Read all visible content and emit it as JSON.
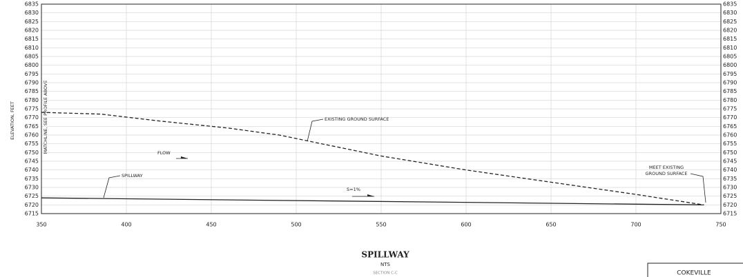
{
  "chart_data": {
    "type": "line",
    "title": "SPILLWAY",
    "subtitle": "NTS",
    "section": "SECTION C-C",
    "ylabel": "ELEVATION, FEET",
    "matchline": "MATCHLINE, SEE PROFILE ABOVE",
    "annotations": [
      "EXISTING GROUND SURFACE",
      "FLOW",
      "SPILLWAY",
      "S=1%",
      "MEET EXISTING",
      "GROUND SURFACE"
    ],
    "title_block": "COKEVILLE",
    "series": [
      {
        "name": "EXISTING GROUND SURFACE",
        "color": "#222222",
        "style": "dashed",
        "x": [
          350,
          385,
          420,
          460,
          490,
          510,
          550,
          600,
          650,
          700,
          740
        ],
        "values": [
          6773,
          6772,
          6768,
          6764,
          6760,
          6756,
          6748,
          6740,
          6733,
          6726,
          6720
        ]
      },
      {
        "name": "SPILLWAY",
        "color": "#222222",
        "style": "solid",
        "x": [
          350,
          740
        ],
        "values": [
          6724,
          6720
        ]
      }
    ],
    "xlim": [
      350,
      750
    ],
    "xticks": [
      350,
      400,
      450,
      500,
      550,
      600,
      650,
      700,
      750
    ],
    "ylim": [
      6715,
      6835
    ],
    "yticks": [
      6715,
      6720,
      6725,
      6730,
      6735,
      6740,
      6745,
      6750,
      6755,
      6760,
      6765,
      6770,
      6775,
      6780,
      6785,
      6790,
      6795,
      6800,
      6805,
      6810,
      6815,
      6820,
      6825,
      6830,
      6835
    ],
    "grid": true
  }
}
